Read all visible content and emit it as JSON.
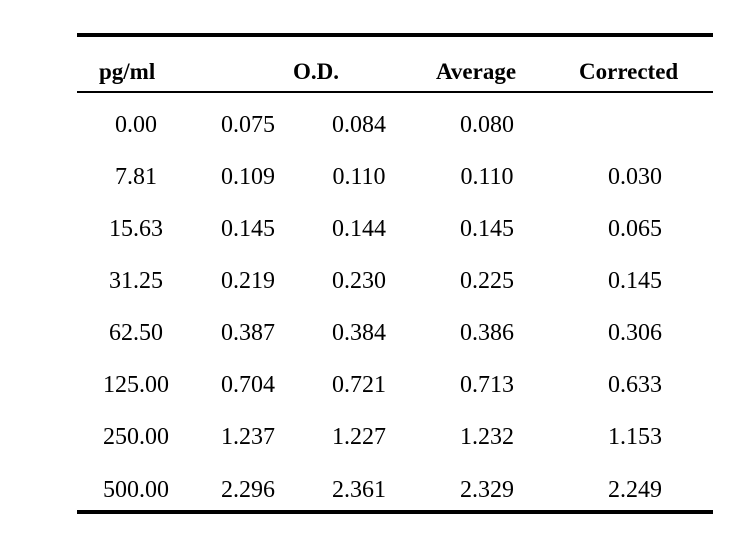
{
  "table": {
    "headers": {
      "concentration": "pg/ml",
      "od": "O.D.",
      "average": "Average",
      "corrected": "Corrected"
    },
    "rows": [
      {
        "concentration": "0.00",
        "od1": "0.075",
        "od2": "0.084",
        "average": "0.080",
        "corrected": ""
      },
      {
        "concentration": "7.81",
        "od1": "0.109",
        "od2": "0.110",
        "average": "0.110",
        "corrected": "0.030"
      },
      {
        "concentration": "15.63",
        "od1": "0.145",
        "od2": "0.144",
        "average": "0.145",
        "corrected": "0.065"
      },
      {
        "concentration": "31.25",
        "od1": "0.219",
        "od2": "0.230",
        "average": "0.225",
        "corrected": "0.145"
      },
      {
        "concentration": "62.50",
        "od1": "0.387",
        "od2": "0.384",
        "average": "0.386",
        "corrected": "0.306"
      },
      {
        "concentration": "125.00",
        "od1": "0.704",
        "od2": "0.721",
        "average": "0.713",
        "corrected": "0.633"
      },
      {
        "concentration": "250.00",
        "od1": "1.237",
        "od2": "1.227",
        "average": "1.232",
        "corrected": "1.153"
      },
      {
        "concentration": "500.00",
        "od1": "2.296",
        "od2": "2.361",
        "average": "2.329",
        "corrected": "2.249"
      }
    ]
  }
}
